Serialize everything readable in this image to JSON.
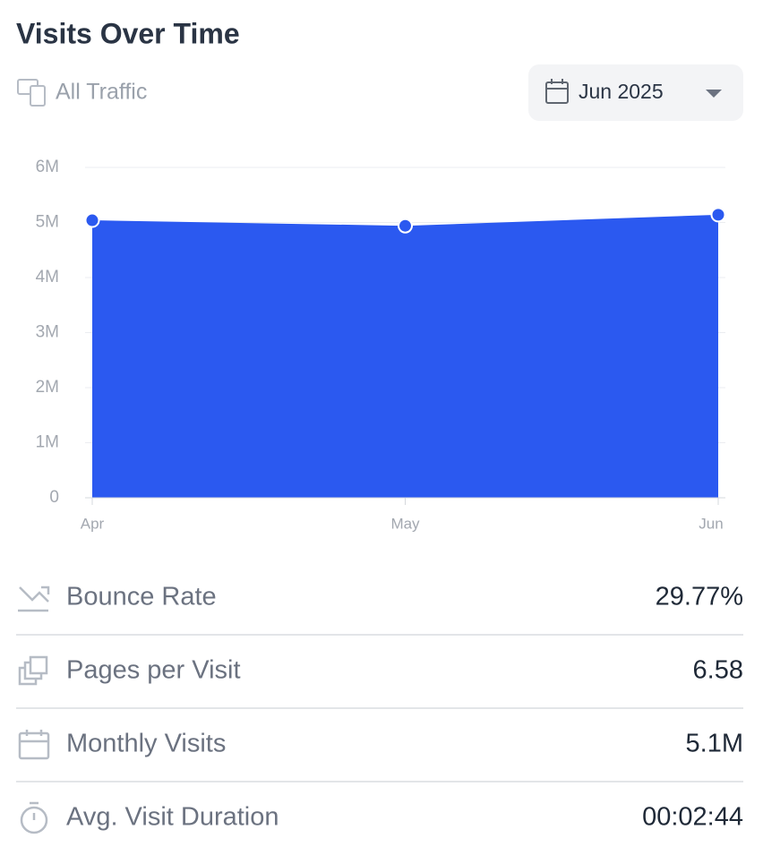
{
  "header": {
    "title": "Visits Over Time",
    "filter": "All Traffic",
    "date": "Jun 2025"
  },
  "chart_data": {
    "type": "area",
    "categories": [
      "Apr",
      "May",
      "Jun"
    ],
    "values": [
      5040000,
      4940000,
      5140000
    ],
    "color": "#2b59f0",
    "ylim": [
      0,
      6000000
    ],
    "yticks": [
      0,
      {
        "value": 1000000,
        "label": "1M"
      },
      {
        "value": 2000000,
        "label": "2M"
      },
      {
        "value": 3000000,
        "label": "3M"
      },
      {
        "value": 4000000,
        "label": "4M"
      },
      {
        "value": 5000000,
        "label": "5M"
      },
      {
        "value": 6000000,
        "label": "6M"
      }
    ],
    "grid": true
  },
  "metrics": [
    {
      "label": "Bounce Rate",
      "value": "29.77%"
    },
    {
      "label": "Pages per Visit",
      "value": "6.58"
    },
    {
      "label": "Monthly Visits",
      "value": "5.1M"
    },
    {
      "label": "Avg. Visit Duration",
      "value": "00:02:44"
    }
  ]
}
